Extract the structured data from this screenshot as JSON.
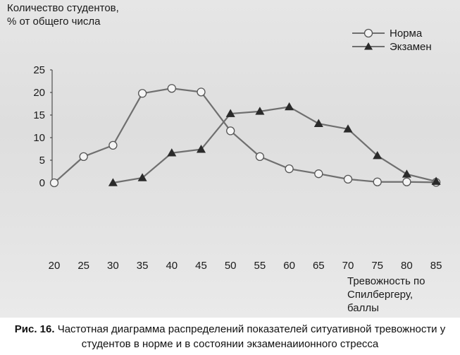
{
  "chart_data": {
    "type": "line",
    "ylabel": "Количество студентов,\n% от общего числа",
    "xlabel": "Тревожность по Спилбергеру, баллы",
    "ylim": [
      0,
      25
    ],
    "xlim": [
      20,
      85
    ],
    "yticks": [
      0,
      5,
      10,
      15,
      20,
      25
    ],
    "xticks": [
      20,
      25,
      30,
      35,
      40,
      45,
      50,
      55,
      60,
      65,
      70,
      75,
      80,
      85
    ],
    "legend": "top-right",
    "grid": false,
    "series": [
      {
        "name": "Норма",
        "marker": "circle",
        "x": [
          20,
          25,
          30,
          35,
          40,
          45,
          50,
          55,
          60,
          65,
          70,
          75,
          80,
          85
        ],
        "y": [
          0,
          5.8,
          8.3,
          19.8,
          20.9,
          20.1,
          11.5,
          5.8,
          3.1,
          2.0,
          0.8,
          0.2,
          0.2,
          0.1
        ]
      },
      {
        "name": "Экзамен",
        "marker": "triangle",
        "x": [
          30,
          35,
          40,
          45,
          50,
          55,
          60,
          65,
          70,
          75,
          80,
          85
        ],
        "y": [
          0,
          1.1,
          6.6,
          7.4,
          15.3,
          15.8,
          16.8,
          13.1,
          11.9,
          6.0,
          1.9,
          0.3
        ]
      }
    ]
  },
  "caption": {
    "label": "Рис. 16.",
    "text": " Частотная диаграмма распределений показателей ситуативной тревожности у студентов в норме и в состоянии экзаменаиионного стресса"
  }
}
